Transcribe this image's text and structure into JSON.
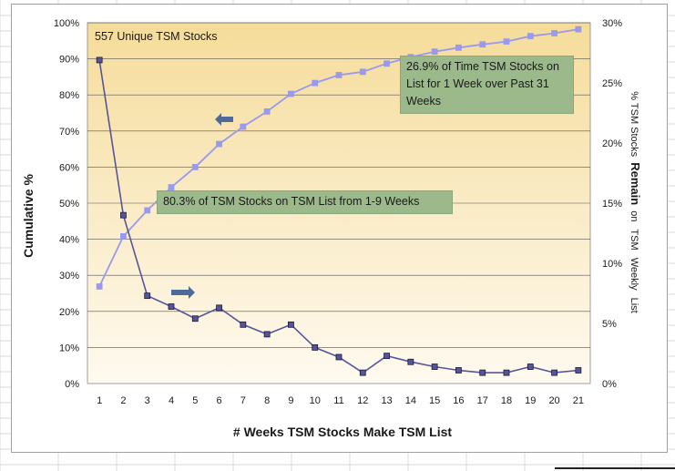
{
  "chart_data": {
    "type": "line",
    "title": "",
    "inset_label": "557 Unique TSM Stocks",
    "xlabel": "# Weeks TSM Stocks Make TSM List",
    "ylabel_left": "Cumulative %",
    "ylabel_right_parts": [
      "% TSM Stocks",
      "Remain",
      "on",
      "TSM",
      "Weekly",
      "List"
    ],
    "x": [
      1,
      2,
      3,
      4,
      5,
      6,
      7,
      8,
      9,
      10,
      11,
      12,
      13,
      14,
      15,
      16,
      17,
      18,
      19,
      20,
      21
    ],
    "y_left_ticks": [
      "0%",
      "10%",
      "20%",
      "30%",
      "40%",
      "50%",
      "60%",
      "70%",
      "80%",
      "90%",
      "100%"
    ],
    "y_right_ticks": [
      "0%",
      "5%",
      "10%",
      "15%",
      "20%",
      "25%",
      "30%"
    ],
    "ylim_left": [
      0,
      100
    ],
    "ylim_right": [
      0,
      30
    ],
    "series": [
      {
        "axis": "left",
        "color": "#9999ee",
        "values": [
          26.9,
          40.8,
          48.0,
          54.4,
          60.0,
          66.4,
          71.2,
          75.4,
          80.3,
          83.3,
          85.5,
          86.4,
          88.7,
          90.5,
          92.0,
          93.1,
          94.0,
          94.8,
          96.3,
          97.1,
          98.2
        ]
      },
      {
        "axis": "right",
        "color": "#555599",
        "values": [
          26.9,
          14.0,
          7.3,
          6.4,
          5.4,
          6.3,
          4.9,
          4.1,
          4.9,
          3.0,
          2.2,
          0.9,
          2.3,
          1.8,
          1.4,
          1.1,
          0.9,
          0.9,
          1.4,
          0.9,
          1.1
        ]
      }
    ],
    "annotations": [
      "26.9% of Time TSM Stocks on List for 1 Week over Past 31 Weeks",
      "80.3% of TSM Stocks on TSM List from 1-9 Weeks"
    ],
    "grid": true,
    "legend": "none"
  },
  "colors": {
    "plot_top": "#f5dc9a",
    "plot_bottom": "#fffaf0",
    "arrow": "#4f6a9a",
    "annotation_box": "#9bb98b"
  }
}
